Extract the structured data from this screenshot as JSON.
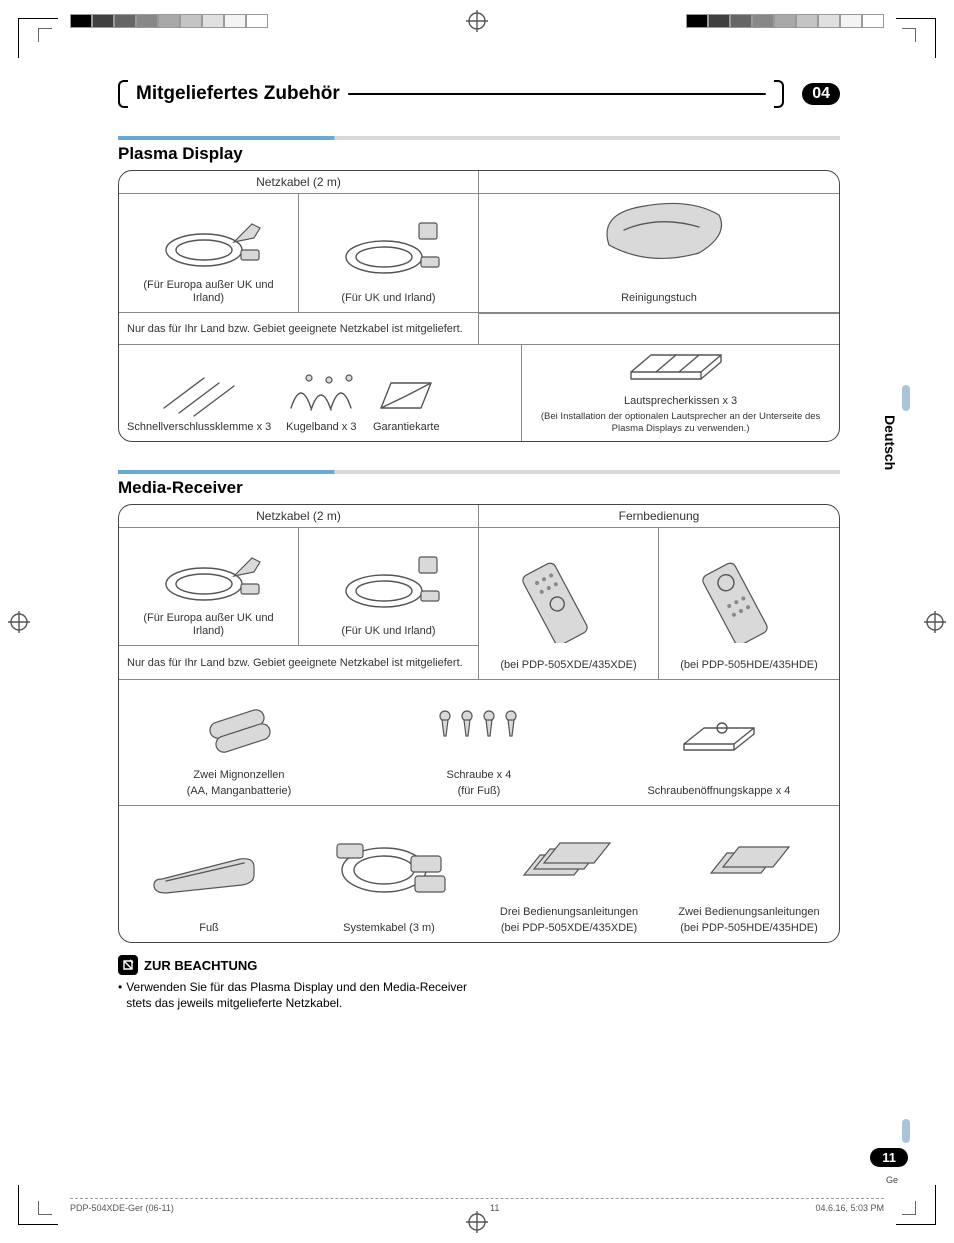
{
  "header": {
    "title": "Mitgeliefertes Zubehör",
    "chapter": "04"
  },
  "language_tab": "Deutsch",
  "plasma": {
    "title": "Plasma Display",
    "power_header": "Netzkabel (2 m)",
    "eu_caption": "(Für Europa außer UK und Irland)",
    "uk_caption": "(Für UK und Irland)",
    "note": "Nur das für Ihr Land bzw. Gebiet geeignete Netzkabel ist mitgeliefert.",
    "cloth": "Reinigungstuch",
    "clamp": "Schnellverschlussklemme x 3",
    "tie": "Kugelband x 3",
    "warranty": "Garantiekarte",
    "speaker_cushion": "Lautsprecherkissen x 3",
    "speaker_cushion_note": "(Bei Installation der optionalen Lautsprecher an der Unterseite des Plasma Displays zu verwenden.)"
  },
  "media": {
    "title": "Media-Receiver",
    "power_header": "Netzkabel (2 m)",
    "remote_header": "Fernbedienung",
    "eu_caption": "(Für Europa außer UK und Irland)",
    "uk_caption": "(Für UK und Irland)",
    "note": "Nur das für Ihr Land bzw. Gebiet geeignete Netzkabel ist mitgeliefert.",
    "remote_xde": "(bei PDP-505XDE/435XDE)",
    "remote_hde": "(bei PDP-505HDE/435HDE)",
    "batteries_l1": "Zwei Mignonzellen",
    "batteries_l2": "(AA, Manganbatterie)",
    "screws_l1": "Schraube x 4",
    "screws_l2": "(für Fuß)",
    "caps": "Schraubenöffnungskappe x 4",
    "foot": "Fuß",
    "syscable": "Systemkabel (3 m)",
    "manuals3_l1": "Drei Bedienungsanleitungen",
    "manuals3_l2": "(bei PDP-505XDE/435XDE)",
    "manuals2_l1": "Zwei Bedienungsanleitungen",
    "manuals2_l2": "(bei PDP-505HDE/435HDE)"
  },
  "notice": {
    "title": "ZUR BEACHTUNG",
    "body": "Verwenden Sie für das Plasma Display und den Media-Receiver stets das jeweils mitgelieferte Netzkabel."
  },
  "page_number": "11",
  "page_lang": "Ge",
  "footer": {
    "doc": "PDP-504XDE-Ger (06-11)",
    "pg": "11",
    "ts": "04.6.16, 5:03 PM"
  },
  "colorbar": [
    "#000000",
    "#404040",
    "#666666",
    "#888888",
    "#a8a8a8",
    "#c4c4c4",
    "#e0e0e0",
    "#f4f4f4",
    "#ffffff"
  ],
  "style": {
    "accent": "#6aa8d8",
    "rule_grey": "#d9d9d9"
  }
}
